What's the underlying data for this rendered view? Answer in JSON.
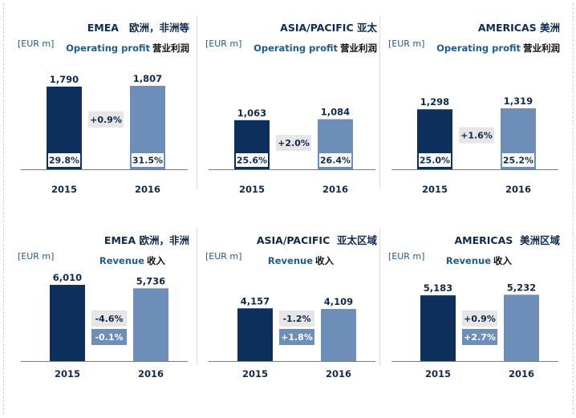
{
  "colors": {
    "dark": "#0c2f5c",
    "light": "#6d8eb9",
    "gray_box": "#e6e6e6",
    "blue_box": "#6d8eb9",
    "axis": "#7a7a7a"
  },
  "unit_label": "[EUR m]",
  "chart_data": [
    {
      "type": "bar",
      "row": "operating_profit",
      "region": "EMEA",
      "region_zh": "欧洲，非洲等",
      "metric": "Operating profit",
      "metric_zh": "营业利润",
      "categories": [
        "2015",
        "2016"
      ],
      "values": [
        1790,
        1807
      ],
      "value_labels": [
        "1,790",
        "1,807"
      ],
      "margins": [
        "29.8%",
        "31.5%"
      ],
      "changes": [
        {
          "text": "+0.9%",
          "style": "gray"
        }
      ]
    },
    {
      "type": "bar",
      "row": "operating_profit",
      "region": "ASIA/PACIFIC",
      "region_zh": "亚太",
      "metric": "Operating profit",
      "metric_zh": "营业利润",
      "categories": [
        "2015",
        "2016"
      ],
      "values": [
        1063,
        1084
      ],
      "value_labels": [
        "1,063",
        "1,084"
      ],
      "margins": [
        "25.6%",
        "26.4%"
      ],
      "changes": [
        {
          "text": "+2.0%",
          "style": "gray"
        }
      ]
    },
    {
      "type": "bar",
      "row": "operating_profit",
      "region": "AMERICAS",
      "region_zh": "美洲",
      "metric": "Operating profit",
      "metric_zh": "营业利润",
      "categories": [
        "2015",
        "2016"
      ],
      "values": [
        1298,
        1319
      ],
      "value_labels": [
        "1,298",
        "1,319"
      ],
      "margins": [
        "25.0%",
        "25.2%"
      ],
      "changes": [
        {
          "text": "+1.6%",
          "style": "gray"
        }
      ]
    },
    {
      "type": "bar",
      "row": "revenue",
      "region": "EMEA",
      "region_zh": "欧洲，非洲",
      "metric": "Revenue",
      "metric_zh": "收入",
      "categories": [
        "2015",
        "2016"
      ],
      "values": [
        6010,
        5736
      ],
      "value_labels": [
        "6,010",
        "5,736"
      ],
      "margins": [],
      "changes": [
        {
          "text": "-4.6%",
          "style": "gray"
        },
        {
          "text": "-0.1%",
          "style": "blue"
        }
      ]
    },
    {
      "type": "bar",
      "row": "revenue",
      "region": "ASIA/PACIFIC",
      "region_zh": "亚太区域",
      "metric": "Revenue",
      "metric_zh": "收入",
      "categories": [
        "2015",
        "2016"
      ],
      "values": [
        4157,
        4109
      ],
      "value_labels": [
        "4,157",
        "4,109"
      ],
      "margins": [],
      "changes": [
        {
          "text": "-1.2%",
          "style": "gray"
        },
        {
          "text": "+1.8%",
          "style": "blue"
        }
      ]
    },
    {
      "type": "bar",
      "row": "revenue",
      "region": "AMERICAS",
      "region_zh": "美洲区域",
      "metric": "Revenue",
      "metric_zh": "收入",
      "categories": [
        "2015",
        "2016"
      ],
      "values": [
        5183,
        5232
      ],
      "value_labels": [
        "5,183",
        "5,232"
      ],
      "margins": [],
      "changes": [
        {
          "text": "+0.9%",
          "style": "gray"
        },
        {
          "text": "+2.7%",
          "style": "blue"
        }
      ]
    }
  ]
}
